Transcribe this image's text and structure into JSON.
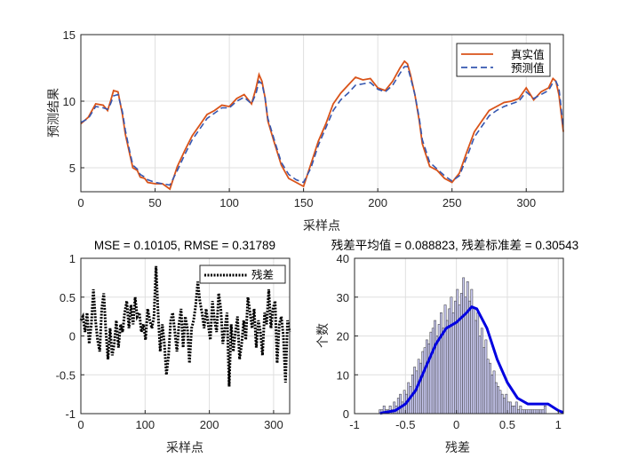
{
  "chart_data": [
    {
      "type": "line",
      "ylabel": "预测结果",
      "xlabel": "采样点",
      "xlim": [
        0,
        325
      ],
      "ylim": [
        3.2,
        15
      ],
      "xticks": [
        "0",
        "50",
        "100",
        "150",
        "200",
        "250",
        "300"
      ],
      "yticks": [
        "5",
        "10",
        "15"
      ],
      "grid": true,
      "legend_position": "top-right",
      "x": [
        0,
        5,
        10,
        15,
        18,
        20,
        22,
        25,
        28,
        30,
        33,
        35,
        38,
        40,
        43,
        45,
        50,
        55,
        60,
        65,
        70,
        75,
        80,
        85,
        90,
        95,
        100,
        105,
        110,
        115,
        118,
        120,
        122,
        124,
        126,
        130,
        135,
        140,
        145,
        150,
        155,
        160,
        165,
        170,
        175,
        180,
        185,
        190,
        195,
        200,
        205,
        210,
        215,
        218,
        220,
        222,
        225,
        228,
        230,
        235,
        240,
        245,
        250,
        255,
        260,
        265,
        270,
        275,
        280,
        285,
        290,
        295,
        300,
        305,
        310,
        315,
        318,
        320,
        322,
        325
      ],
      "series": [
        {
          "name": "真实值",
          "color": "#d95319",
          "values": [
            8.3,
            8.8,
            9.8,
            9.7,
            9.3,
            10.0,
            10.8,
            10.7,
            9.0,
            7.5,
            6.0,
            5.0,
            4.8,
            4.3,
            4.2,
            3.9,
            3.8,
            3.8,
            3.4,
            5.1,
            6.3,
            7.4,
            8.2,
            9.0,
            9.3,
            9.7,
            9.6,
            10.2,
            10.5,
            9.8,
            11.0,
            12.0,
            11.5,
            10.3,
            8.5,
            7.0,
            5.2,
            4.2,
            3.9,
            3.6,
            5.3,
            7.0,
            8.3,
            9.8,
            10.6,
            11.2,
            11.8,
            11.6,
            11.7,
            11.0,
            10.8,
            11.5,
            12.5,
            13.0,
            12.8,
            12.0,
            10.5,
            8.5,
            6.8,
            5.1,
            4.8,
            4.2,
            3.9,
            4.6,
            6.2,
            7.7,
            8.5,
            9.3,
            9.6,
            9.9,
            10.0,
            10.2,
            11.0,
            10.1,
            10.7,
            11.0,
            11.7,
            11.5,
            10.5,
            7.7
          ]
        },
        {
          "name": "预测值",
          "color": "#3657b0",
          "values": [
            8.4,
            8.7,
            9.6,
            9.5,
            9.4,
            9.8,
            10.4,
            10.5,
            9.2,
            7.8,
            6.2,
            5.2,
            4.9,
            4.5,
            4.3,
            4.1,
            3.9,
            3.8,
            3.7,
            4.8,
            6.0,
            7.1,
            7.9,
            8.7,
            9.1,
            9.5,
            9.5,
            10.0,
            10.3,
            9.8,
            10.6,
            11.5,
            11.3,
            10.3,
            8.7,
            7.2,
            5.4,
            4.5,
            4.1,
            3.9,
            5.0,
            6.7,
            8.0,
            9.3,
            10.1,
            10.6,
            11.2,
            11.3,
            11.4,
            10.9,
            10.7,
            11.2,
            12.1,
            12.6,
            12.6,
            11.8,
            10.5,
            8.7,
            7.1,
            5.4,
            4.9,
            4.4,
            4.0,
            4.4,
            5.8,
            7.3,
            8.1,
            8.9,
            9.3,
            9.6,
            9.8,
            10.0,
            10.7,
            10.2,
            10.5,
            10.8,
            11.4,
            11.5,
            11.0,
            8.0
          ]
        }
      ]
    },
    {
      "type": "line",
      "title": "MSE = 0.10105, RMSE = 0.31789",
      "xlabel": "采样点",
      "xlim": [
        0,
        325
      ],
      "ylim": [
        -1,
        1
      ],
      "xticks": [
        "0",
        "100",
        "200",
        "300"
      ],
      "yticks": [
        "-1",
        "-0.5",
        "0",
        "0.5",
        "1"
      ],
      "grid": true,
      "legend_position": "top-right",
      "series": [
        {
          "name": "残差",
          "color": "#000000",
          "values": [
            0.2,
            0.25,
            0.05,
            0.3,
            -0.1,
            0.15,
            0.6,
            0.2,
            -0.05,
            -0.2,
            0.35,
            0.55,
            0.05,
            -0.3,
            0.1,
            -0.25,
            -0.1,
            0.2,
            -0.15,
            0.15,
            0.05,
            0.3,
            0.45,
            0.1,
            0.4,
            0.15,
            0.5,
            0.25,
            0.3,
            0.05,
            0.15,
            -0.05,
            0.35,
            0.2,
            0.1,
            0.25,
            0.9,
            0.3,
            -0.2,
            0.15,
            -0.1,
            -0.5,
            -0.25,
            0.2,
            0.3,
            0.05,
            -0.2,
            0.15,
            0.35,
            -0.15,
            0.25,
            0.1,
            -0.35,
            0.1,
            0.2,
            0.4,
            0.7,
            0.45,
            0.3,
            0.1,
            0.35,
            0.15,
            -0.05,
            0.45,
            0.2,
            0.05,
            0.55,
            0.35,
            -0.1,
            0.1,
            0.3,
            -0.65,
            0.15,
            -0.2,
            0.05,
            0.25,
            -0.3,
            -0.1,
            0.2,
            -0.05,
            0.5,
            0.3,
            0.1,
            0.35,
            -0.15,
            0.2,
            0.05,
            -0.25,
            0.3,
            0.15,
            0.6,
            0.1,
            0.35,
            0.45,
            -0.35,
            0.15,
            0.25,
            0.0,
            -0.6,
            0.2,
            0.05
          ]
        }
      ]
    },
    {
      "type": "bar",
      "title": "残差平均值 = 0.088823, 残差标准差 = 0.30543",
      "xlabel": "残差",
      "ylabel": "个数",
      "xlim": [
        -1,
        1.05
      ],
      "ylim": [
        0,
        40
      ],
      "xticks": [
        "-1",
        "-0.5",
        "0",
        "0.5",
        "1"
      ],
      "yticks": [
        "0",
        "10",
        "20",
        "30",
        "40"
      ],
      "grid": true,
      "bin_start": -0.76,
      "bin_width": 0.02,
      "values": [
        1,
        1,
        2,
        1,
        1,
        2,
        1,
        3,
        2,
        4,
        5,
        3,
        6,
        5,
        8,
        7,
        10,
        12,
        11,
        14,
        13,
        16,
        17,
        19,
        18,
        21,
        22,
        24,
        20,
        23,
        26,
        22,
        28,
        24,
        27,
        30,
        26,
        29,
        32,
        28,
        31,
        35,
        30,
        34,
        29,
        32,
        27,
        24,
        26,
        20,
        22,
        17,
        19,
        14,
        13,
        10,
        11,
        8,
        7,
        6,
        5,
        4,
        5,
        3,
        3,
        2,
        2,
        3,
        1,
        2,
        1,
        1,
        1,
        1,
        1,
        1,
        1,
        1,
        1,
        1,
        1,
        2
      ],
      "bar_fill": "#c8c8f0",
      "curve_color": "#0000e0",
      "curve_x": [
        -0.75,
        -0.6,
        -0.5,
        -0.4,
        -0.3,
        -0.2,
        -0.1,
        0.0,
        0.1,
        0.15,
        0.2,
        0.3,
        0.4,
        0.5,
        0.6,
        0.7,
        0.8,
        0.9,
        1.0,
        1.05
      ],
      "curve_values": [
        0.1,
        0.8,
        2.5,
        6,
        12,
        18,
        22,
        23.5,
        26,
        27.5,
        27,
        22,
        14,
        8,
        4,
        2.5,
        2.5,
        2.5,
        0.8,
        0.3
      ]
    }
  ]
}
